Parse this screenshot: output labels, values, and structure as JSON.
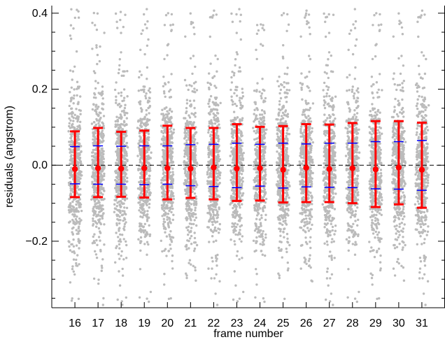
{
  "chart_data": {
    "type": "scatter",
    "title": "",
    "xlabel": "frame number",
    "ylabel": "residuals (angstrom)",
    "xlim": [
      15,
      32
    ],
    "ylim": [
      -0.375,
      0.42
    ],
    "xticks": [
      16,
      17,
      18,
      19,
      20,
      21,
      22,
      23,
      24,
      25,
      26,
      27,
      28,
      29,
      30,
      31
    ],
    "xtick_labels": [
      "16",
      "17",
      "18",
      "19",
      "20",
      "21",
      "22",
      "23",
      "24",
      "25",
      "26",
      "27",
      "28",
      "29",
      "30",
      "31"
    ],
    "yticks": [
      -0.2,
      0.0,
      0.2,
      0.4
    ],
    "ytick_labels": [
      "−0.2",
      "0.0",
      "0.2",
      "0.4"
    ],
    "reference_line": {
      "y": 0.0,
      "style": "dashed",
      "color": "#000000"
    },
    "frames": [
      16,
      17,
      18,
      19,
      20,
      21,
      22,
      23,
      24,
      25,
      26,
      27,
      28,
      29,
      30,
      31
    ],
    "series": [
      {
        "kind": "mean",
        "color": "#ff0000",
        "values": [
          -0.01,
          -0.008,
          -0.009,
          -0.008,
          -0.008,
          -0.009,
          -0.006,
          -0.009,
          -0.008,
          -0.012,
          -0.007,
          -0.01,
          -0.008,
          -0.011,
          -0.006,
          -0.012
        ]
      },
      {
        "kind": "error_bar_upper",
        "color": "#ff0000",
        "values": [
          0.089,
          0.098,
          0.088,
          0.091,
          0.104,
          0.098,
          0.098,
          0.108,
          0.101,
          0.103,
          0.108,
          0.107,
          0.111,
          0.116,
          0.116,
          0.112
        ]
      },
      {
        "kind": "error_bar_lower",
        "color": "#ff0000",
        "values": [
          -0.084,
          -0.084,
          -0.083,
          -0.085,
          -0.09,
          -0.086,
          -0.09,
          -0.094,
          -0.093,
          -0.098,
          -0.097,
          -0.097,
          -0.1,
          -0.11,
          -0.103,
          -0.112
        ]
      },
      {
        "kind": "quartile_upper",
        "color": "#0000ff",
        "values": [
          0.049,
          0.051,
          0.05,
          0.051,
          0.051,
          0.054,
          0.055,
          0.058,
          0.055,
          0.058,
          0.056,
          0.058,
          0.058,
          0.062,
          0.062,
          0.065
        ]
      },
      {
        "kind": "quartile_lower",
        "color": "#0000ff",
        "values": [
          -0.049,
          -0.05,
          -0.05,
          -0.051,
          -0.05,
          -0.054,
          -0.056,
          -0.059,
          -0.055,
          -0.06,
          -0.057,
          -0.058,
          -0.059,
          -0.062,
          -0.063,
          -0.066
        ]
      },
      {
        "kind": "residual_scatter",
        "color": "#bbbbbb",
        "note_density": "dense per-frame cloud, approx 500 points per frame",
        "spread": {
          "core_sigma": 0.09,
          "range": [
            -0.37,
            0.42
          ],
          "x_jitter": 0.3
        }
      }
    ],
    "grid": false,
    "legend": "none"
  }
}
